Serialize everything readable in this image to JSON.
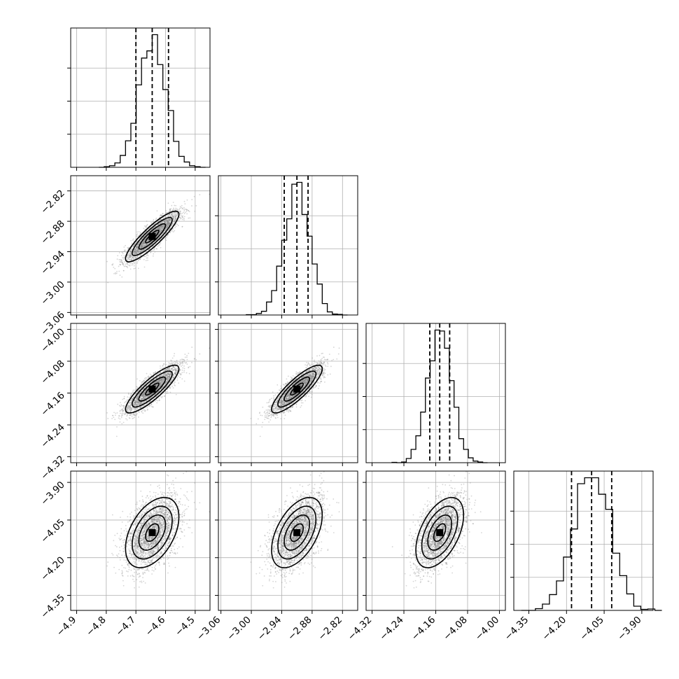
{
  "chart_data": {
    "type": "corner",
    "title": "",
    "grid": true,
    "parameters": [
      {
        "index": 0,
        "range": [
          -4.92,
          -4.45
        ],
        "ticks": [
          -4.9,
          -4.8,
          -4.7,
          -4.6,
          -4.5
        ],
        "tick_labels": [
          "-4.9",
          "-4.8",
          "-4.7",
          "-4.6",
          "-4.5"
        ],
        "mean": -4.645,
        "sigma": 0.045,
        "quantiles": [
          -4.7,
          -4.645,
          -4.59
        ]
      },
      {
        "index": 1,
        "range": [
          -3.065,
          -2.79
        ],
        "ticks": [
          -3.06,
          -3.0,
          -2.94,
          -2.88,
          -2.82
        ],
        "tick_labels": [
          "-3.06",
          "-3.00",
          "-2.94",
          "-2.88",
          "-2.82"
        ],
        "mean": -2.91,
        "sigma": 0.025,
        "quantiles": [
          -2.935,
          -2.91,
          -2.888
        ]
      },
      {
        "index": 2,
        "range": [
          -4.335,
          -3.985
        ],
        "ticks": [
          -4.32,
          -4.24,
          -4.16,
          -4.08,
          -4.0
        ],
        "tick_labels": [
          "-4.32",
          "-4.24",
          "-4.16",
          "-4.08",
          "-4.00"
        ],
        "mean": -4.15,
        "sigma": 0.03,
        "quantiles": [
          -4.175,
          -4.15,
          -4.125
        ]
      },
      {
        "index": 3,
        "range": [
          -4.41,
          -3.855
        ],
        "ticks": [
          -4.35,
          -4.2,
          -4.05,
          -3.9
        ],
        "tick_labels": [
          "-4.35",
          "-4.20",
          "-4.05",
          "-3.90"
        ],
        "mean": -4.1,
        "sigma": 0.07,
        "quantiles": [
          -4.18,
          -4.1,
          -4.02
        ]
      }
    ],
    "correlations": [
      [
        1.0,
        0.88,
        0.85,
        0.45
      ],
      [
        0.88,
        1.0,
        0.85,
        0.5
      ],
      [
        0.85,
        0.85,
        1.0,
        0.5
      ],
      [
        0.45,
        0.5,
        0.5,
        1.0
      ]
    ],
    "histogram_bins": 20,
    "contour_sigma_levels": [
      0.5,
      1.0,
      1.5,
      2.0
    ]
  }
}
